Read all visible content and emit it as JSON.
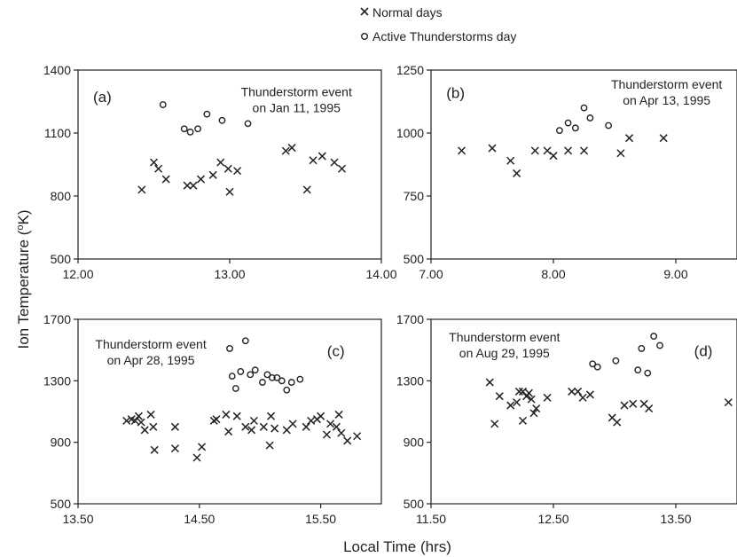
{
  "legend": {
    "entries": [
      {
        "marker": "x",
        "label": "Normal days"
      },
      {
        "marker": "o",
        "label": "Active Thunderstorms day"
      }
    ]
  },
  "ylabel_html": {
    "pre": "Ion Temperature (",
    "sup": "o",
    "post": "K)"
  },
  "xlabel": "Local Time (hrs)",
  "chart_data": [
    {
      "type": "scatter",
      "panel": "(a)",
      "annotation": [
        "Thunderstorm event",
        "on Jan 11, 1995"
      ],
      "xlim": [
        12.0,
        14.0
      ],
      "ylim": [
        500,
        1400
      ],
      "xticks": [
        "12.00",
        "13.00",
        "14.00"
      ],
      "yticks": [
        "500",
        "800",
        "1100",
        "1400"
      ],
      "series": [
        {
          "name": "Normal days",
          "marker": "x",
          "points": [
            [
              12.42,
              830
            ],
            [
              12.5,
              960
            ],
            [
              12.53,
              930
            ],
            [
              12.58,
              880
            ],
            [
              12.72,
              850
            ],
            [
              12.76,
              850
            ],
            [
              12.81,
              880
            ],
            [
              12.89,
              900
            ],
            [
              12.94,
              960
            ],
            [
              12.99,
              930
            ],
            [
              13.0,
              820
            ],
            [
              13.05,
              920
            ],
            [
              13.37,
              1015
            ],
            [
              13.41,
              1030
            ],
            [
              13.51,
              830
            ],
            [
              13.55,
              970
            ],
            [
              13.61,
              990
            ],
            [
              13.69,
              960
            ],
            [
              13.74,
              930
            ]
          ]
        },
        {
          "name": "Active Thunderstorms day",
          "marker": "o",
          "points": [
            [
              12.56,
              1235
            ],
            [
              12.7,
              1120
            ],
            [
              12.74,
              1105
            ],
            [
              12.79,
              1120
            ],
            [
              12.85,
              1190
            ],
            [
              12.95,
              1160
            ],
            [
              13.12,
              1145
            ]
          ]
        }
      ]
    },
    {
      "type": "scatter",
      "panel": "(b)",
      "annotation": [
        "Thunderstorm event",
        "on Apr 13, 1995"
      ],
      "xlim": [
        7.0,
        9.5
      ],
      "ylim": [
        500,
        1250
      ],
      "xticks": [
        "7.00",
        "8.00",
        "9.00"
      ],
      "yticks": [
        "500",
        "750",
        "1000",
        "1250"
      ],
      "series": [
        {
          "name": "Normal days",
          "marker": "x",
          "points": [
            [
              7.25,
              930
            ],
            [
              7.5,
              940
            ],
            [
              7.65,
              890
            ],
            [
              7.7,
              840
            ],
            [
              7.85,
              930
            ],
            [
              7.95,
              930
            ],
            [
              8.0,
              910
            ],
            [
              8.12,
              930
            ],
            [
              8.25,
              930
            ],
            [
              8.55,
              920
            ],
            [
              8.62,
              980
            ],
            [
              8.9,
              980
            ]
          ]
        },
        {
          "name": "Active Thunderstorms day",
          "marker": "o",
          "points": [
            [
              8.05,
              1010
            ],
            [
              8.12,
              1040
            ],
            [
              8.18,
              1020
            ],
            [
              8.25,
              1100
            ],
            [
              8.3,
              1060
            ],
            [
              8.45,
              1030
            ]
          ]
        }
      ]
    },
    {
      "type": "scatter",
      "panel": "(c)",
      "annotation": [
        "Thunderstorm event",
        "on Apr 28, 1995"
      ],
      "xlim": [
        13.5,
        16.0
      ],
      "ylim": [
        500,
        1700
      ],
      "xticks": [
        "13.50",
        "14.50",
        "15.50"
      ],
      "yticks": [
        "500",
        "900",
        "1300",
        "1700"
      ],
      "series": [
        {
          "name": "Normal days",
          "marker": "x",
          "points": [
            [
              13.9,
              1040
            ],
            [
              13.94,
              1050
            ],
            [
              13.97,
              1040
            ],
            [
              14.0,
              1070
            ],
            [
              14.02,
              1030
            ],
            [
              14.05,
              980
            ],
            [
              14.1,
              1080
            ],
            [
              14.12,
              1000
            ],
            [
              14.13,
              850
            ],
            [
              14.3,
              1000
            ],
            [
              14.3,
              860
            ],
            [
              14.48,
              800
            ],
            [
              14.52,
              870
            ],
            [
              14.62,
              1040
            ],
            [
              14.64,
              1050
            ],
            [
              14.72,
              1080
            ],
            [
              14.74,
              970
            ],
            [
              14.81,
              1070
            ],
            [
              14.88,
              1000
            ],
            [
              14.93,
              980
            ],
            [
              14.95,
              1040
            ],
            [
              15.03,
              1000
            ],
            [
              15.08,
              880
            ],
            [
              15.09,
              1070
            ],
            [
              15.12,
              990
            ],
            [
              15.22,
              980
            ],
            [
              15.27,
              1020
            ],
            [
              15.38,
              1000
            ],
            [
              15.42,
              1040
            ],
            [
              15.47,
              1050
            ],
            [
              15.5,
              1070
            ],
            [
              15.55,
              950
            ],
            [
              15.58,
              1020
            ],
            [
              15.63,
              1000
            ],
            [
              15.65,
              1080
            ],
            [
              15.67,
              960
            ],
            [
              15.72,
              910
            ],
            [
              15.8,
              940
            ]
          ]
        },
        {
          "name": "Active Thunderstorms day",
          "marker": "o",
          "points": [
            [
              14.75,
              1510
            ],
            [
              14.77,
              1330
            ],
            [
              14.8,
              1250
            ],
            [
              14.84,
              1360
            ],
            [
              14.88,
              1560
            ],
            [
              14.92,
              1340
            ],
            [
              14.96,
              1370
            ],
            [
              15.02,
              1290
            ],
            [
              15.06,
              1340
            ],
            [
              15.1,
              1320
            ],
            [
              15.14,
              1320
            ],
            [
              15.18,
              1300
            ],
            [
              15.22,
              1240
            ],
            [
              15.26,
              1290
            ],
            [
              15.33,
              1310
            ]
          ]
        }
      ]
    },
    {
      "type": "scatter",
      "panel": "(d)",
      "annotation": [
        "Thunderstorm event",
        "on Aug 29, 1995"
      ],
      "xlim": [
        11.5,
        14.0
      ],
      "ylim": [
        500,
        1700
      ],
      "xticks": [
        "11.50",
        "12.50",
        "13.50"
      ],
      "yticks": [
        "500",
        "900",
        "1300",
        "1700"
      ],
      "series": [
        {
          "name": "Normal days",
          "marker": "x",
          "points": [
            [
              11.98,
              1290
            ],
            [
              12.02,
              1020
            ],
            [
              12.06,
              1200
            ],
            [
              12.15,
              1140
            ],
            [
              12.2,
              1160
            ],
            [
              12.22,
              1230
            ],
            [
              12.25,
              1230
            ],
            [
              12.25,
              1040
            ],
            [
              12.28,
              1200
            ],
            [
              12.3,
              1220
            ],
            [
              12.32,
              1180
            ],
            [
              12.34,
              1090
            ],
            [
              12.36,
              1120
            ],
            [
              12.45,
              1190
            ],
            [
              12.65,
              1230
            ],
            [
              12.7,
              1230
            ],
            [
              12.74,
              1190
            ],
            [
              12.8,
              1210
            ],
            [
              12.98,
              1060
            ],
            [
              13.02,
              1030
            ],
            [
              13.08,
              1140
            ],
            [
              13.15,
              1150
            ],
            [
              13.24,
              1150
            ],
            [
              13.28,
              1120
            ],
            [
              13.93,
              1160
            ]
          ]
        },
        {
          "name": "Active Thunderstorms day",
          "marker": "o",
          "points": [
            [
              12.82,
              1410
            ],
            [
              12.86,
              1390
            ],
            [
              13.01,
              1430
            ],
            [
              13.19,
              1370
            ],
            [
              13.22,
              1510
            ],
            [
              13.27,
              1350
            ],
            [
              13.32,
              1590
            ],
            [
              13.37,
              1530
            ]
          ]
        }
      ]
    }
  ]
}
